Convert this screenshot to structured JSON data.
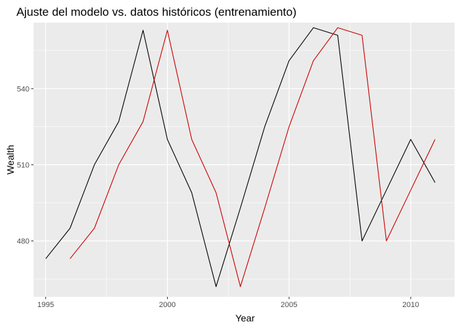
{
  "chart_data": {
    "type": "line",
    "title": "Ajuste del modelo vs. datos históricos (entrenamiento)",
    "xlabel": "Year",
    "ylabel": "Wealth",
    "xlim": [
      1994.5,
      2011.8
    ],
    "ylim": [
      458,
      566
    ],
    "xticks": [
      1995,
      2000,
      2005,
      2010
    ],
    "yticks": [
      480,
      510,
      540
    ],
    "grid": true,
    "legend": "none",
    "panel_color": "#ebebeb",
    "grid_color": "#ffffff",
    "series": [
      {
        "color": "#000000",
        "x": [
          1995,
          1996,
          1997,
          1998,
          1999,
          2000,
          2001,
          2002,
          2003,
          2004,
          2005,
          2006,
          2007,
          2008,
          2009,
          2010,
          2011
        ],
        "y": [
          473,
          485,
          510,
          527,
          563,
          520,
          499,
          462,
          493,
          525,
          551,
          564,
          561,
          480,
          500,
          520,
          503
        ]
      },
      {
        "color": "#cc0000",
        "x": [
          1996,
          1997,
          1998,
          1999,
          2000,
          2001,
          2002,
          2003,
          2004,
          2005,
          2006,
          2007,
          2008,
          2009,
          2010,
          2011
        ],
        "y": [
          473,
          485,
          510,
          527,
          563,
          520,
          499,
          462,
          493,
          525,
          551,
          564,
          561,
          480,
          500,
          520
        ]
      }
    ]
  }
}
